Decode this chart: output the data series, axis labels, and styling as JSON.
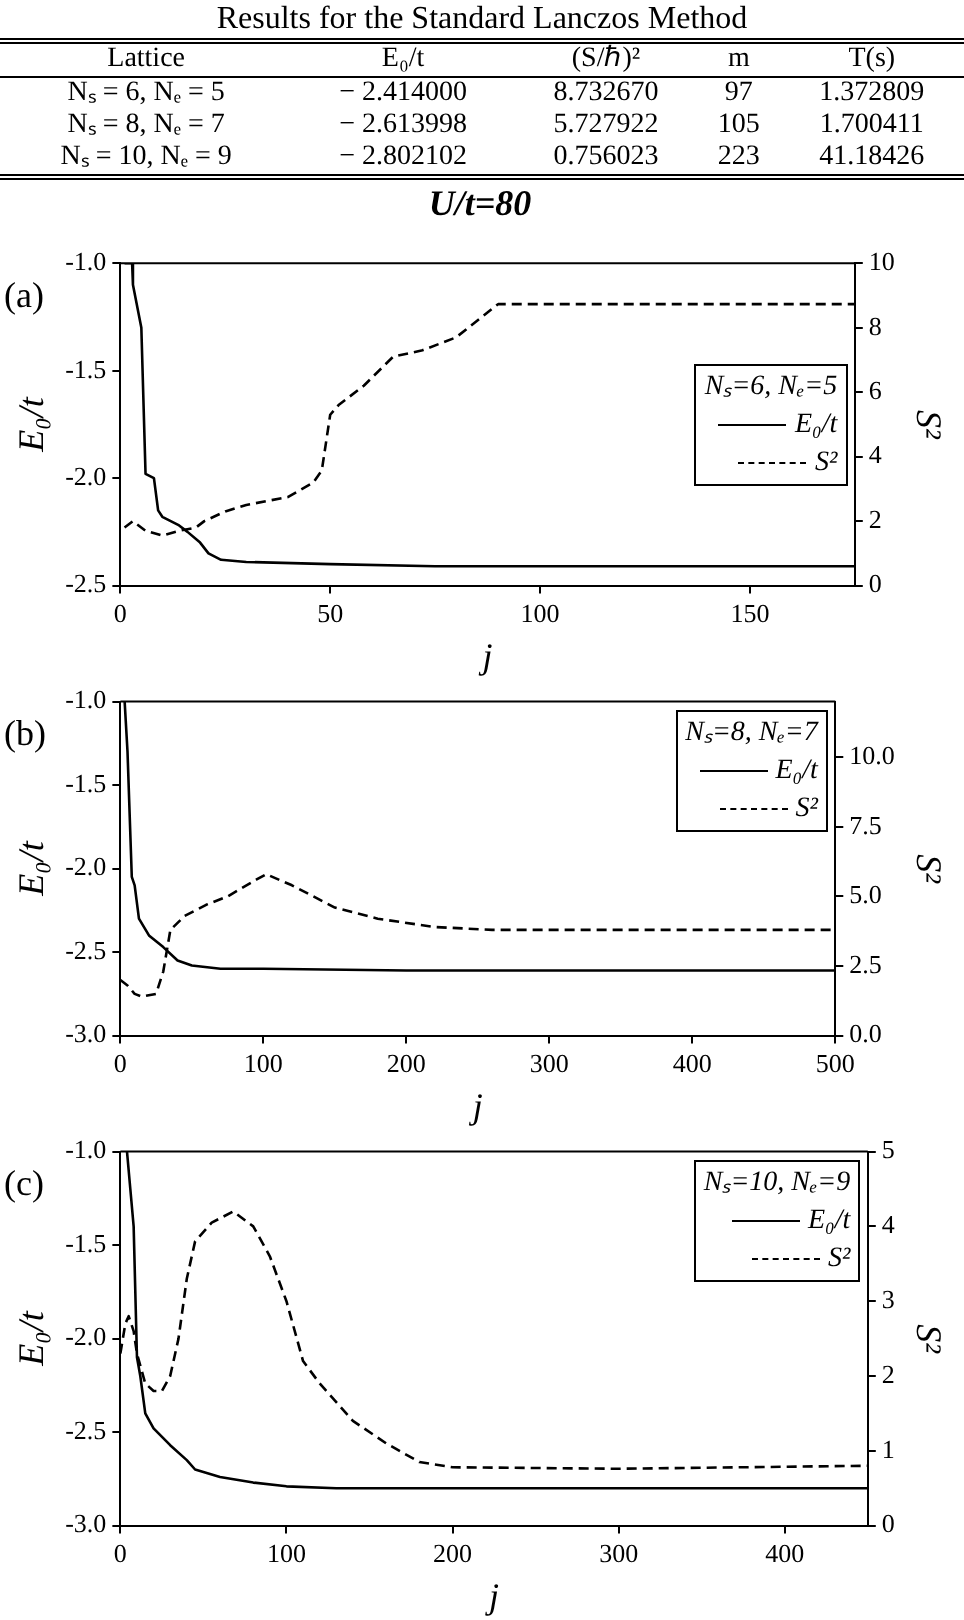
{
  "chart_data": [
    {
      "type": "other",
      "title": "Results for the Standard Lanczos Method",
      "categories": [
        "Lattice",
        "E₀/t",
        "(S/ℏ)²",
        "m",
        "T(s)"
      ],
      "y_categories": [
        "Nₛ = 6, Nₑ = 5",
        "Nₛ = 8, Nₑ = 7",
        "Nₛ = 10, Nₑ = 9"
      ],
      "cell_labels": [
        [
          "− 2.414000",
          "8.732670",
          "97",
          "1.372809"
        ],
        [
          "− 2.613998",
          "5.727922",
          "105",
          "1.700411"
        ],
        [
          "− 2.802102",
          "0.756023",
          "223",
          "41.18426"
        ]
      ]
    },
    {
      "type": "line",
      "title": "U/t=80",
      "xlabel": "j",
      "ylabel": "E₀/t",
      "y2label": "S²",
      "legend_title": "Nₛ=6, Nₑ=5",
      "legend": "right",
      "annotations": [
        "(a)"
      ],
      "marker": "none",
      "grid": false,
      "xlim": [
        0,
        175
      ],
      "xticks": [
        0,
        50,
        100,
        150
      ],
      "ylim": [
        -2.5,
        -1.0
      ],
      "yticks": [
        {
          "value": -2.5,
          "label": "-2.5"
        },
        {
          "value": -2.0,
          "label": "-2.0"
        },
        {
          "value": -1.5,
          "label": "-1.5"
        },
        {
          "value": -1.0,
          "label": "-1.0"
        }
      ],
      "y2lim": [
        0,
        10
      ],
      "y2ticks": [
        0,
        2,
        4,
        6,
        8,
        10
      ],
      "series": [
        {
          "name": "E₀/t",
          "color": "#000000",
          "line_style": "solid",
          "x": [
            1,
            2.8,
            3,
            5,
            6,
            8,
            9,
            10,
            12,
            14,
            16,
            19,
            21,
            24,
            30,
            50,
            75,
            100,
            175
          ],
          "values": [
            -1.0,
            -1.0,
            -1.1,
            -1.3,
            -1.98,
            -2.0,
            -2.15,
            -2.18,
            -2.2,
            -2.22,
            -2.25,
            -2.3,
            -2.35,
            -2.38,
            -2.39,
            -2.4,
            -2.41,
            -2.41,
            -2.41
          ]
        },
        {
          "name": "S²",
          "color": "#000000",
          "line_style": "dashed",
          "axis": "y2",
          "x": [
            1,
            3,
            6,
            10,
            14,
            18,
            20,
            25,
            30,
            40,
            46,
            48,
            50,
            52,
            58,
            65,
            72,
            80,
            90,
            175
          ],
          "values": [
            1.8,
            2.0,
            1.7,
            1.55,
            1.7,
            1.8,
            2.0,
            2.3,
            2.5,
            2.75,
            3.2,
            3.57,
            5.3,
            5.6,
            6.2,
            7.1,
            7.3,
            7.7,
            8.73,
            8.73
          ]
        }
      ]
    },
    {
      "type": "line",
      "xlabel": "j",
      "ylabel": "E₀/t",
      "y2label": "S²",
      "legend_title": "Nₛ=8, Nₑ=7",
      "legend": "top right",
      "annotations": [
        "(b)"
      ],
      "marker": "none",
      "grid": false,
      "xlim": [
        0,
        500
      ],
      "xticks": [
        0,
        100,
        200,
        300,
        400,
        500
      ],
      "ylim": [
        -3.0,
        -1.0
      ],
      "yticks": [
        {
          "value": -3.0,
          "label": "-3.0"
        },
        {
          "value": -2.5,
          "label": "-2.5"
        },
        {
          "value": -2.0,
          "label": "-2.0"
        },
        {
          "value": -1.5,
          "label": "-1.5"
        },
        {
          "value": -1.0,
          "label": "-1.0"
        }
      ],
      "y2lim": [
        0,
        12
      ],
      "y2ticks": [
        {
          "value": 0,
          "label": "0.0"
        },
        {
          "value": 2.5,
          "label": "2.5"
        },
        {
          "value": 5,
          "label": "5.0"
        },
        {
          "value": 7.5,
          "label": "7.5"
        },
        {
          "value": 10,
          "label": "10.0"
        }
      ],
      "series": [
        {
          "name": "E₀/t",
          "color": "#000000",
          "line_style": "solid",
          "x": [
            3,
            5,
            8,
            10,
            13,
            20,
            30,
            40,
            50,
            70,
            100,
            200,
            500
          ],
          "values": [
            -1.0,
            -1.3,
            -2.05,
            -2.1,
            -2.3,
            -2.4,
            -2.47,
            -2.55,
            -2.58,
            -2.6,
            -2.6,
            -2.61,
            -2.61
          ]
        },
        {
          "name": "S²",
          "color": "#000000",
          "line_style": "dashed",
          "axis": "y2",
          "x": [
            0,
            5,
            10,
            15,
            25,
            30,
            35,
            45,
            60,
            75,
            95,
            102,
            120,
            150,
            180,
            220,
            260,
            500
          ],
          "values": [
            2.0,
            1.8,
            1.5,
            1.4,
            1.5,
            2.3,
            3.8,
            4.3,
            4.7,
            5.0,
            5.6,
            5.8,
            5.4,
            4.6,
            4.2,
            3.9,
            3.8,
            3.8
          ]
        }
      ]
    },
    {
      "type": "line",
      "xlabel": "j",
      "ylabel": "E₀/t",
      "y2label": "S²",
      "legend_title": "Nₛ=10, Nₑ=9",
      "legend": "top right",
      "annotations": [
        "(c)"
      ],
      "marker": "none",
      "grid": false,
      "xlim": [
        0,
        450
      ],
      "xticks": [
        0,
        100,
        200,
        300,
        400
      ],
      "ylim": [
        -3.0,
        -1.0
      ],
      "yticks": [
        {
          "value": -3.0,
          "label": "-3.0"
        },
        {
          "value": -2.5,
          "label": "-2.5"
        },
        {
          "value": -2.0,
          "label": "-2.0"
        },
        {
          "value": -1.5,
          "label": "-1.5"
        },
        {
          "value": -1.0,
          "label": "-1.0"
        }
      ],
      "y2lim": [
        0,
        5
      ],
      "y2ticks": [
        0,
        1,
        2,
        3,
        4,
        5
      ],
      "series": [
        {
          "name": "E₀/t",
          "color": "#000000",
          "line_style": "solid",
          "x": [
            4,
            6,
            8,
            10,
            12,
            15,
            20,
            30,
            40,
            45,
            60,
            80,
            100,
            130,
            450
          ],
          "values": [
            -1.0,
            -1.2,
            -1.4,
            -2.1,
            -2.2,
            -2.4,
            -2.48,
            -2.57,
            -2.65,
            -2.7,
            -2.74,
            -2.77,
            -2.79,
            -2.8,
            -2.8
          ]
        },
        {
          "name": "S²",
          "color": "#000000",
          "line_style": "dashed",
          "axis": "y2",
          "x": [
            0,
            3,
            5,
            8,
            10,
            15,
            20,
            25,
            30,
            35,
            40,
            45,
            55,
            68,
            80,
            90,
            100,
            110,
            120,
            140,
            160,
            180,
            200,
            300,
            450
          ],
          "values": [
            2.3,
            2.7,
            2.8,
            2.6,
            2.3,
            1.9,
            1.8,
            1.8,
            2.0,
            2.5,
            3.3,
            3.8,
            4.05,
            4.2,
            4.0,
            3.6,
            3.0,
            2.2,
            1.9,
            1.4,
            1.1,
            0.85,
            0.78,
            0.76,
            0.8
          ]
        }
      ]
    }
  ]
}
